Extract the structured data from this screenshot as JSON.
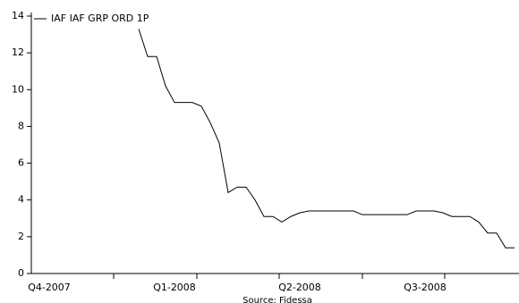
{
  "chart_data": {
    "type": "line",
    "source": "Source: Fidessa",
    "categories": [
      null,
      null,
      "Q4-2007",
      null,
      null,
      null,
      null,
      null,
      null,
      null,
      null,
      null,
      null,
      null,
      null,
      null,
      "Q1-2008",
      null,
      null,
      null,
      null,
      null,
      null,
      null,
      null,
      null,
      null,
      null,
      null,
      null,
      "Q2-2008",
      null,
      null,
      null,
      null,
      null,
      null,
      null,
      null,
      null,
      null,
      null,
      null,
      null,
      "Q3-2008",
      null,
      null,
      null,
      null,
      null,
      null,
      null,
      null,
      null,
      null
    ],
    "series": [
      {
        "name": "IAF IAF GRP ORD 1P",
        "color": "#000000",
        "values": [
          null,
          null,
          null,
          null,
          null,
          null,
          null,
          null,
          null,
          null,
          null,
          null,
          13.3,
          11.8,
          11.8,
          10.2,
          9.3,
          9.3,
          9.3,
          9.1,
          8.2,
          7.1,
          4.4,
          4.7,
          4.7,
          4.0,
          3.1,
          3.1,
          2.8,
          3.1,
          3.3,
          3.4,
          3.4,
          3.4,
          3.4,
          3.4,
          3.4,
          3.2,
          3.2,
          3.2,
          3.2,
          3.2,
          3.2,
          3.4,
          3.4,
          3.4,
          3.3,
          3.1,
          3.1,
          3.1,
          2.8,
          2.2,
          2.2,
          1.4,
          1.4
        ]
      }
    ],
    "ylim": [
      0,
      14
    ],
    "yticks": [
      0,
      2,
      4,
      6,
      8,
      10,
      12,
      14
    ],
    "legend": "top-left"
  }
}
